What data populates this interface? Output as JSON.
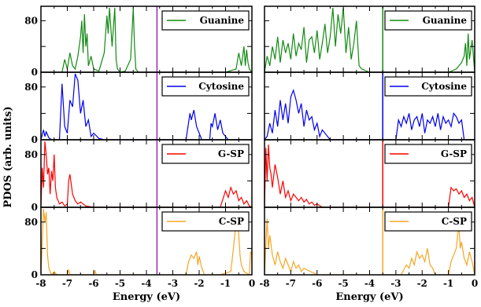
{
  "chart_data": {
    "type": "line",
    "ylabel": "PDOS (arb. units)",
    "row_order": [
      "Guanine",
      "Cytosine",
      "G-SP",
      "C-SP"
    ],
    "panels": [
      {
        "xlabel": "Energy (eV)",
        "xlim": [
          -8,
          0
        ],
        "xticks": [
          -8,
          -7,
          -6,
          -5,
          -4,
          -3,
          -2,
          -1,
          0
        ],
        "ylim": [
          0,
          100
        ],
        "yticks": [
          0,
          80
        ],
        "fermi_level": -3.6,
        "fermi_color": "#9c27b0",
        "series": [
          {
            "name": "Guanine",
            "color": "#138a13",
            "x": [
              -8.0,
              -7.2,
              -7.1,
              -7.0,
              -6.9,
              -6.8,
              -6.7,
              -6.6,
              -6.5,
              -6.45,
              -6.4,
              -6.35,
              -6.3,
              -6.25,
              -6.2,
              -6.1,
              -6.0,
              -5.8,
              -5.6,
              -5.5,
              -5.45,
              -5.4,
              -5.3,
              -5.2,
              -5.15,
              -5.1,
              -5.0,
              -4.8,
              -4.6,
              -4.5,
              -4.45,
              -4.4,
              -4.3,
              -4.0,
              -1.5,
              -1.0,
              -0.6,
              -0.5,
              -0.4,
              -0.35,
              -0.3,
              -0.25,
              -0.2,
              -0.15,
              -0.1,
              0.0
            ],
            "y": [
              0,
              0,
              20,
              5,
              30,
              10,
              5,
              25,
              55,
              80,
              30,
              90,
              40,
              60,
              10,
              25,
              5,
              2,
              30,
              88,
              60,
              100,
              40,
              100,
              20,
              5,
              0,
              2,
              20,
              100,
              40,
              5,
              0,
              0,
              0,
              0,
              5,
              30,
              10,
              25,
              40,
              10,
              35,
              15,
              5,
              0
            ]
          },
          {
            "name": "Cytosine",
            "color": "#0000ee",
            "x": [
              -8.0,
              -7.9,
              -7.85,
              -7.8,
              -7.7,
              -7.6,
              -7.3,
              -7.2,
              -7.1,
              -7.0,
              -6.9,
              -6.8,
              -6.7,
              -6.6,
              -6.5,
              -6.4,
              -6.3,
              -6.2,
              -6.1,
              -6.0,
              -5.8,
              -5.6,
              -2.5,
              -2.35,
              -2.3,
              -2.2,
              -2.1,
              -1.9,
              -1.6,
              -1.55,
              -1.5,
              -1.4,
              -1.3,
              -1.2,
              -1.1,
              -0.9,
              0.0
            ],
            "y": [
              0,
              15,
              5,
              12,
              3,
              0,
              0,
              85,
              20,
              10,
              60,
              50,
              100,
              90,
              40,
              60,
              20,
              30,
              5,
              10,
              2,
              0,
              0,
              40,
              30,
              45,
              20,
              0,
              0,
              25,
              20,
              40,
              15,
              30,
              10,
              0,
              0
            ]
          },
          {
            "name": "G-SP",
            "color": "#ff0000",
            "x": [
              -8.0,
              -7.95,
              -7.9,
              -7.85,
              -7.8,
              -7.75,
              -7.7,
              -7.65,
              -7.6,
              -7.55,
              -7.5,
              -7.45,
              -7.4,
              -7.3,
              -7.2,
              -7.1,
              -7.0,
              -6.95,
              -6.9,
              -6.8,
              -6.7,
              -6.6,
              -6.5,
              -6.3,
              -6.0,
              -1.2,
              -1.0,
              -0.9,
              -0.8,
              -0.7,
              -0.6,
              -0.5,
              -0.4,
              -0.3,
              -0.2,
              -0.1,
              0.0
            ],
            "y": [
              0,
              60,
              30,
              100,
              80,
              50,
              60,
              20,
              55,
              40,
              80,
              30,
              15,
              5,
              8,
              2,
              5,
              40,
              50,
              20,
              10,
              5,
              8,
              2,
              0,
              0,
              25,
              15,
              30,
              20,
              25,
              10,
              15,
              5,
              10,
              2,
              0
            ]
          },
          {
            "name": "C-SP",
            "color": "#f5a623",
            "x": [
              -8.0,
              -7.9,
              -7.85,
              -7.8,
              -7.75,
              -7.7,
              -7.6,
              -7.5,
              -7.4,
              -7.0,
              -6.95,
              -6.9,
              -6.0,
              -5.95,
              -5.9,
              -2.5,
              -2.4,
              -2.3,
              -2.2,
              -2.1,
              -2.05,
              -2.0,
              -1.9,
              -1.8,
              -1.2,
              -0.8,
              -0.7,
              -0.6,
              -0.55,
              -0.5,
              -0.45,
              -0.4,
              -0.3,
              -0.1,
              -0.05,
              0.0
            ],
            "y": [
              0,
              100,
              80,
              95,
              30,
              10,
              0,
              5,
              0,
              0,
              8,
              0,
              0,
              6,
              0,
              0,
              20,
              30,
              25,
              35,
              15,
              28,
              10,
              0,
              0,
              5,
              40,
              80,
              90,
              60,
              30,
              15,
              5,
              0,
              35,
              30
            ]
          }
        ]
      },
      {
        "xlabel": "Energy (eV)",
        "xlim": [
          -8,
          0
        ],
        "xticks": [
          -8,
          -7,
          -6,
          -5,
          -4,
          -3,
          -2,
          -1,
          0
        ],
        "ylim": [
          0,
          100
        ],
        "yticks": [],
        "fermi_level": -3.5,
        "fermi_color": "",
        "series": [
          {
            "name": "Guanine",
            "color": "#138a13",
            "x": [
              -8.0,
              -7.9,
              -7.8,
              -7.7,
              -7.6,
              -7.5,
              -7.4,
              -7.3,
              -7.2,
              -7.1,
              -7.0,
              -6.9,
              -6.8,
              -6.7,
              -6.6,
              -6.5,
              -6.4,
              -6.3,
              -6.2,
              -6.1,
              -6.0,
              -5.9,
              -5.8,
              -5.7,
              -5.6,
              -5.5,
              -5.4,
              -5.3,
              -5.2,
              -5.1,
              -5.0,
              -4.9,
              -4.8,
              -4.7,
              -4.6,
              -4.5,
              -4.4,
              -4.3,
              -4.0,
              -1.0,
              -0.7,
              -0.5,
              -0.4,
              -0.35,
              -0.3,
              -0.25,
              -0.2,
              -0.1,
              0.0
            ],
            "y": [
              0,
              25,
              10,
              40,
              20,
              55,
              15,
              50,
              30,
              45,
              20,
              60,
              25,
              45,
              35,
              70,
              15,
              50,
              55,
              30,
              65,
              20,
              45,
              75,
              30,
              55,
              100,
              40,
              90,
              60,
              100,
              30,
              70,
              20,
              45,
              80,
              10,
              5,
              0,
              0,
              5,
              15,
              25,
              45,
              10,
              60,
              20,
              50,
              0
            ]
          },
          {
            "name": "Cytosine",
            "color": "#0000ee",
            "x": [
              -8.0,
              -7.9,
              -7.8,
              -7.7,
              -7.6,
              -7.5,
              -7.4,
              -7.3,
              -7.2,
              -7.1,
              -7.0,
              -6.9,
              -6.8,
              -6.7,
              -6.6,
              -6.5,
              -6.4,
              -6.3,
              -6.2,
              -6.1,
              -6.0,
              -5.9,
              -5.8,
              -5.5,
              -3.0,
              -2.9,
              -2.8,
              -2.7,
              -2.6,
              -2.5,
              -2.4,
              -2.3,
              -2.2,
              -2.1,
              -2.0,
              -1.9,
              -1.8,
              -1.7,
              -1.6,
              -1.5,
              -1.4,
              -1.3,
              -1.2,
              -1.1,
              -1.0,
              -0.9,
              -0.8,
              -0.7,
              -0.6,
              -0.5,
              -0.4,
              0.0
            ],
            "y": [
              0,
              5,
              25,
              10,
              45,
              20,
              60,
              30,
              55,
              25,
              65,
              75,
              60,
              40,
              55,
              20,
              45,
              30,
              35,
              15,
              25,
              5,
              15,
              0,
              0,
              30,
              20,
              35,
              25,
              40,
              15,
              30,
              35,
              20,
              40,
              10,
              30,
              25,
              35,
              20,
              40,
              15,
              35,
              25,
              30,
              20,
              40,
              35,
              25,
              30,
              0,
              0
            ]
          },
          {
            "name": "G-SP",
            "color": "#ff0000",
            "x": [
              -8.0,
              -7.95,
              -7.9,
              -7.85,
              -7.8,
              -7.75,
              -7.7,
              -7.6,
              -7.5,
              -7.4,
              -7.3,
              -7.2,
              -7.1,
              -7.0,
              -6.9,
              -6.8,
              -6.7,
              -6.6,
              -6.5,
              -6.4,
              -6.3,
              -6.2,
              -6.1,
              -6.0,
              -5.8,
              -1.0,
              -0.9,
              -0.8,
              -0.7,
              -0.6,
              -0.5,
              -0.4,
              -0.3,
              -0.2,
              -0.1,
              0.0
            ],
            "y": [
              0,
              90,
              40,
              95,
              60,
              50,
              30,
              65,
              45,
              20,
              40,
              15,
              25,
              10,
              20,
              15,
              10,
              15,
              8,
              12,
              5,
              8,
              3,
              5,
              0,
              0,
              30,
              25,
              28,
              20,
              25,
              15,
              20,
              10,
              15,
              0
            ]
          },
          {
            "name": "C-SP",
            "color": "#f5a623",
            "x": [
              -8.0,
              -7.9,
              -7.85,
              -7.8,
              -7.7,
              -7.6,
              -7.5,
              -7.4,
              -7.3,
              -7.2,
              -7.1,
              -7.0,
              -6.9,
              -6.8,
              -6.7,
              -6.6,
              -6.5,
              -6.0,
              -5.0,
              -2.8,
              -2.6,
              -2.5,
              -2.4,
              -2.3,
              -2.2,
              -2.1,
              -2.0,
              -1.9,
              -1.8,
              -1.7,
              -1.6,
              -1.5,
              -1.0,
              -0.9,
              -0.8,
              -0.7,
              -0.65,
              -0.6,
              -0.55,
              -0.5,
              -0.4,
              -0.3,
              -0.2,
              -0.1,
              0.0
            ],
            "y": [
              0,
              85,
              40,
              60,
              30,
              15,
              35,
              20,
              10,
              25,
              15,
              5,
              20,
              10,
              15,
              5,
              10,
              0,
              0,
              0,
              15,
              10,
              25,
              15,
              35,
              25,
              30,
              20,
              40,
              15,
              10,
              0,
              0,
              20,
              30,
              40,
              60,
              75,
              40,
              50,
              25,
              15,
              35,
              20,
              0
            ]
          }
        ]
      }
    ]
  }
}
